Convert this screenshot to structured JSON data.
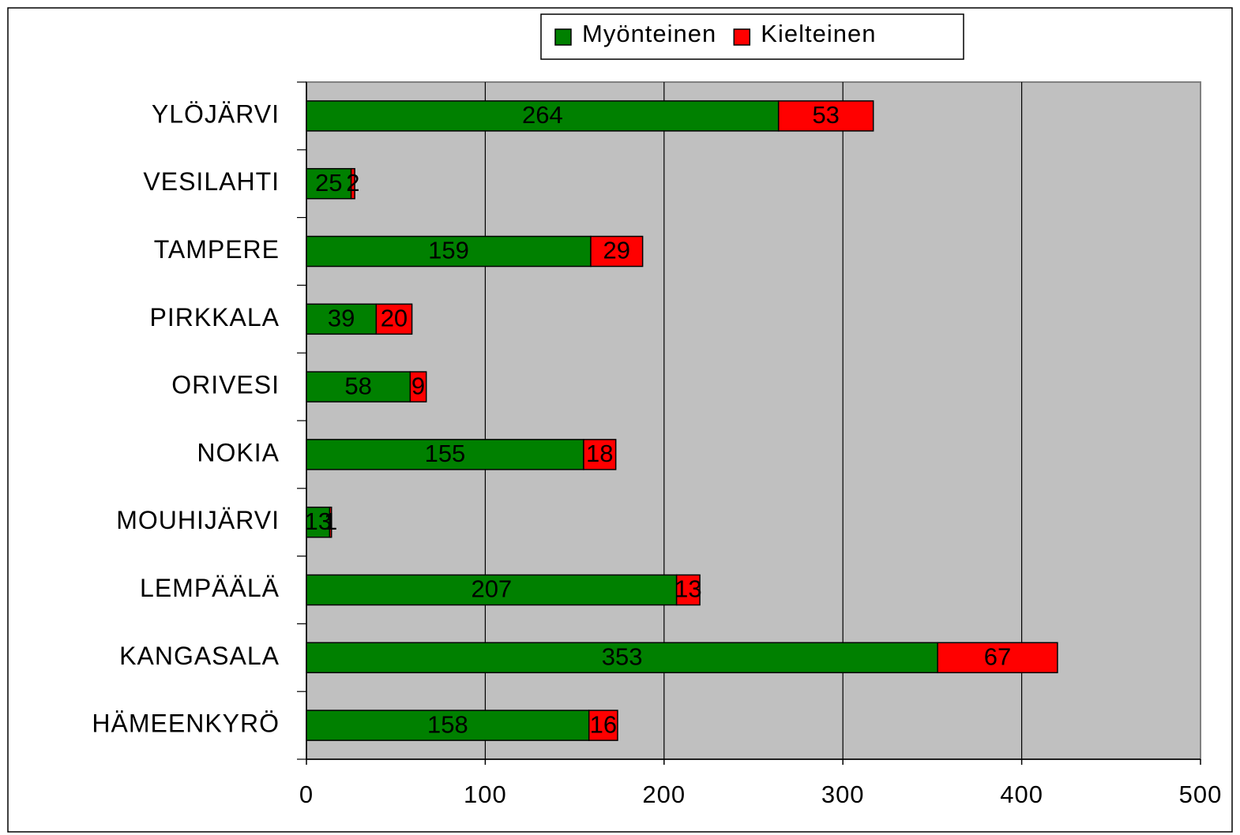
{
  "chart_data": {
    "type": "stacked_bar_horizontal",
    "categories": [
      "YLÖJÄRVI",
      "VESILAHTI",
      "TAMPERE",
      "PIRKKALA",
      "ORIVESI",
      "NOKIA",
      "MOUHIJÄRVI",
      "LEMPÄÄLÄ",
      "KANGASALA",
      "HÄMEENKYRÖ"
    ],
    "series": [
      {
        "name": "Myönteinen",
        "color": "#008000",
        "values": [
          264,
          25,
          159,
          39,
          58,
          155,
          13,
          207,
          353,
          158
        ]
      },
      {
        "name": "Kielteinen",
        "color": "#ff0000",
        "values": [
          53,
          2,
          29,
          20,
          9,
          18,
          1,
          13,
          67,
          16
        ]
      }
    ],
    "xlim": [
      0,
      500
    ],
    "xticks": [
      0,
      100,
      200,
      300,
      400,
      500
    ],
    "grid": true,
    "legend": "top"
  }
}
